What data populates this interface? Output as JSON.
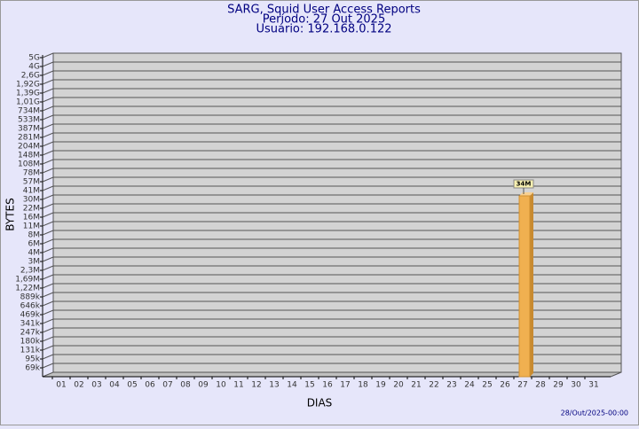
{
  "chart_data": {
    "type": "bar",
    "title": "SARG, Squid User Access Reports",
    "subtitle": [
      "Período: 27 Out 2025",
      "Usuário: 192.168.0.122"
    ],
    "x_label": "DIAS",
    "y_label": "BYTES",
    "footer": "28/Out/2025-00:00",
    "y_scale": "log",
    "grid": true,
    "color": "#f0b050",
    "categories": [
      "01",
      "02",
      "03",
      "04",
      "05",
      "06",
      "07",
      "08",
      "09",
      "10",
      "11",
      "12",
      "13",
      "14",
      "15",
      "16",
      "17",
      "18",
      "19",
      "20",
      "21",
      "22",
      "23",
      "24",
      "25",
      "26",
      "27",
      "28",
      "29",
      "30",
      "31"
    ],
    "values": [
      null,
      null,
      null,
      null,
      null,
      null,
      null,
      null,
      null,
      null,
      null,
      null,
      null,
      null,
      null,
      null,
      null,
      null,
      null,
      null,
      null,
      null,
      null,
      null,
      null,
      null,
      34000000,
      null,
      null,
      null,
      null
    ],
    "value_labels": [
      null,
      null,
      null,
      null,
      null,
      null,
      null,
      null,
      null,
      null,
      null,
      null,
      null,
      null,
      null,
      null,
      null,
      null,
      null,
      null,
      null,
      null,
      null,
      null,
      null,
      null,
      "34M",
      null,
      null,
      null,
      null
    ],
    "ylim": [
      50000,
      5000000000
    ],
    "yticks": [
      {
        "value": 5000000000,
        "label": "5G"
      },
      {
        "value": 4000000000,
        "label": "4G"
      },
      {
        "value": 2600000000,
        "label": "2,6G"
      },
      {
        "value": 1920000000,
        "label": "1,92G"
      },
      {
        "value": 1390000000,
        "label": "1,39G"
      },
      {
        "value": 1010000000,
        "label": "1,01G"
      },
      {
        "value": 734000000,
        "label": "734M"
      },
      {
        "value": 533000000,
        "label": "533M"
      },
      {
        "value": 387000000,
        "label": "387M"
      },
      {
        "value": 281000000,
        "label": "281M"
      },
      {
        "value": 204000000,
        "label": "204M"
      },
      {
        "value": 148000000,
        "label": "148M"
      },
      {
        "value": 108000000,
        "label": "108M"
      },
      {
        "value": 78000000,
        "label": "78M"
      },
      {
        "value": 57000000,
        "label": "57M"
      },
      {
        "value": 41000000,
        "label": "41M"
      },
      {
        "value": 30000000,
        "label": "30M"
      },
      {
        "value": 22000000,
        "label": "22M"
      },
      {
        "value": 16000000,
        "label": "16M"
      },
      {
        "value": 11000000,
        "label": "11M"
      },
      {
        "value": 8000000,
        "label": "8M"
      },
      {
        "value": 6000000,
        "label": "6M"
      },
      {
        "value": 4000000,
        "label": "4M"
      },
      {
        "value": 3000000,
        "label": "3M"
      },
      {
        "value": 2300000,
        "label": "2,3M"
      },
      {
        "value": 1690000,
        "label": "1,69M"
      },
      {
        "value": 1220000,
        "label": "1,22M"
      },
      {
        "value": 889000,
        "label": "889k"
      },
      {
        "value": 646000,
        "label": "646k"
      },
      {
        "value": 469000,
        "label": "469k"
      },
      {
        "value": 341000,
        "label": "341k"
      },
      {
        "value": 247000,
        "label": "247k"
      },
      {
        "value": 180000,
        "label": "180k"
      },
      {
        "value": 131000,
        "label": "131k"
      },
      {
        "value": 95000,
        "label": "95k"
      },
      {
        "value": 69000,
        "label": "69k"
      }
    ]
  }
}
